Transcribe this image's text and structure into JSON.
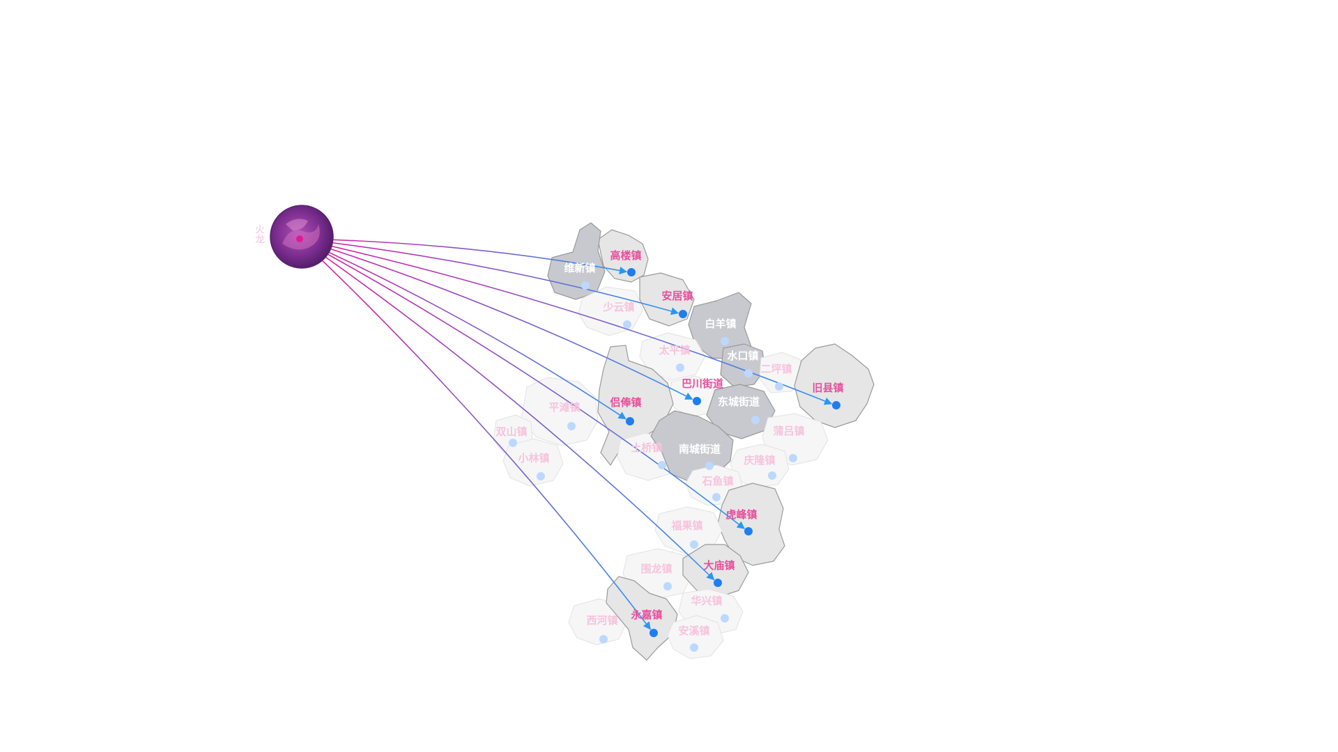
{
  "map": {
    "origin": {
      "label": "火龙",
      "color": "#7b2d8e"
    },
    "colors": {
      "dark_region": "#c7c9cf",
      "highlight_region": "#e6e6e6",
      "light_region": "#f6f6f7",
      "line_start": "#e0199a",
      "line_end": "#2a96f3",
      "dot_highlight": "#1e7ef0",
      "dot_faint": "#bcd8ff",
      "label_highlight": "#e84f9c",
      "label_faint": "#f7c3dc"
    },
    "towns": [
      {
        "name": "高楼镇",
        "style": "highlight",
        "target": true
      },
      {
        "name": "维新镇",
        "style": "dark",
        "target": false
      },
      {
        "name": "安居镇",
        "style": "highlight",
        "target": true
      },
      {
        "name": "少云镇",
        "style": "light",
        "target": false
      },
      {
        "name": "白羊镇",
        "style": "dark",
        "target": false
      },
      {
        "name": "太平镇",
        "style": "light",
        "target": false
      },
      {
        "name": "水口镇",
        "style": "dark",
        "target": false
      },
      {
        "name": "二坪镇",
        "style": "light",
        "target": false
      },
      {
        "name": "旧县镇",
        "style": "highlight",
        "target": true
      },
      {
        "name": "巴川街道",
        "style": "light",
        "target": true
      },
      {
        "name": "东城街道",
        "style": "dark",
        "target": false
      },
      {
        "name": "侣俸镇",
        "style": "highlight",
        "target": true
      },
      {
        "name": "平滩镇",
        "style": "light",
        "target": false
      },
      {
        "name": "双山镇",
        "style": "light",
        "target": false
      },
      {
        "name": "小林镇",
        "style": "light",
        "target": false
      },
      {
        "name": "土桥镇",
        "style": "light",
        "target": false
      },
      {
        "name": "南城街道",
        "style": "dark",
        "target": false
      },
      {
        "name": "蒲吕镇",
        "style": "light",
        "target": false
      },
      {
        "name": "庆隆镇",
        "style": "light",
        "target": false
      },
      {
        "name": "石鱼镇",
        "style": "light",
        "target": false
      },
      {
        "name": "虎峰镇",
        "style": "highlight",
        "target": true
      },
      {
        "name": "福果镇",
        "style": "light",
        "target": false
      },
      {
        "name": "围龙镇",
        "style": "light",
        "target": false
      },
      {
        "name": "大庙镇",
        "style": "highlight",
        "target": true
      },
      {
        "name": "华兴镇",
        "style": "light",
        "target": false
      },
      {
        "name": "西河镇",
        "style": "light",
        "target": false
      },
      {
        "name": "永嘉镇",
        "style": "highlight",
        "target": true
      },
      {
        "name": "安溪镇",
        "style": "light",
        "target": false
      }
    ]
  }
}
